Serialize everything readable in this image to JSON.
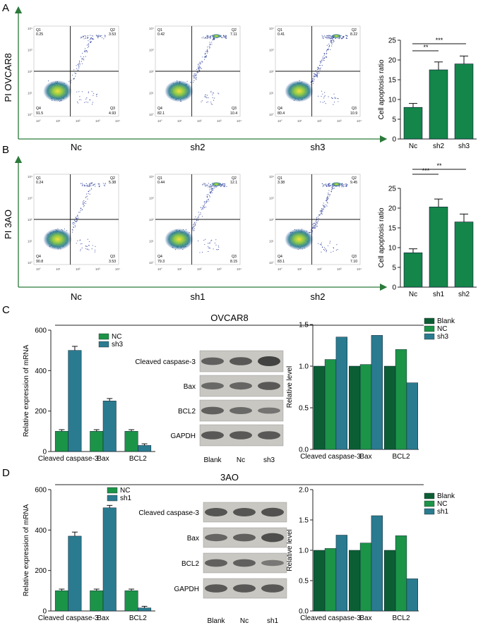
{
  "panel_labels": {
    "a": "A",
    "b": "B",
    "c": "C",
    "d": "D"
  },
  "colors": {
    "dark_green": "#0b5e34",
    "green": "#1b9448",
    "mid_green": "#14864a",
    "teal": "#2a7b8f",
    "axis_green": "#2b7a3a"
  },
  "flow": {
    "rowA": {
      "ylabel": "PI  OVCAR8",
      "plots": [
        {
          "label": "Nc",
          "q1": "0.25",
          "q2": "3.53",
          "q3": "4.93",
          "q4": "91.5"
        },
        {
          "label": "sh2",
          "q1": "0.42",
          "q2": "7.11",
          "q3": "10.4",
          "q4": "82.1"
        },
        {
          "label": "sh3",
          "q1": "0.41",
          "q2": "8.22",
          "q3": "10.9",
          "q4": "80.4"
        }
      ]
    },
    "rowB": {
      "ylabel": "PI  3AO",
      "plots": [
        {
          "label": "Nc",
          "q1": "0.24",
          "q2": "5.38",
          "q3": "3.53",
          "q4": "90.8"
        },
        {
          "label": "sh1",
          "q1": "0.44",
          "q2": "12.1",
          "q3": "8.15",
          "q4": "79.3"
        },
        {
          "label": "sh2",
          "q1": "3.38",
          "q2": "9.45",
          "q3": "7.10",
          "q4": "83.1"
        }
      ]
    },
    "quadrant_names": {
      "q1": "Q1",
      "q2": "Q2",
      "q3": "Q3",
      "q4": "Q4"
    },
    "x_ticks": [
      "10°",
      "10¹",
      "10²",
      "10³",
      "10⁴"
    ],
    "y_ticks": [
      "10⁴",
      "10³",
      "10²",
      "10¹",
      "10°"
    ]
  },
  "blots": {
    "c": {
      "title": "OVCAR8",
      "rows": [
        "Cleaved caspase-3",
        "Bax",
        "BCL2",
        "GAPDH"
      ],
      "lanes": [
        "Blank",
        "Nc",
        "sh3"
      ]
    },
    "d": {
      "title": "3AO",
      "rows": [
        "Cleaved caspase-3",
        "Bax",
        "BCL2",
        "GAPDH"
      ],
      "lanes": [
        "Blank",
        "Nc",
        "sh1"
      ]
    }
  },
  "chart_data": [
    {
      "id": "apoptosis_ovcar8",
      "type": "bar",
      "categories": [
        "Nc",
        "sh2",
        "sh3"
      ],
      "values": [
        8.0,
        17.5,
        19.0
      ],
      "errors": [
        1.0,
        2.0,
        2.0
      ],
      "ylabel": "Cell apoptosis ratio",
      "ylim": [
        0,
        25
      ],
      "yticks": [
        "0",
        "5",
        "10",
        "15",
        "20",
        "25"
      ],
      "significance": [
        "**",
        "***"
      ]
    },
    {
      "id": "apoptosis_3ao",
      "type": "bar",
      "categories": [
        "Nc",
        "sh1",
        "sh2"
      ],
      "values": [
        8.7,
        20.3,
        16.5
      ],
      "errors": [
        1.0,
        2.0,
        2.0
      ],
      "ylabel": "Cell apoptosis ratio",
      "ylim": [
        0,
        25
      ],
      "yticks": [
        "0",
        "5",
        "10",
        "15",
        "20",
        "25"
      ],
      "significance": [
        "***",
        "**"
      ]
    },
    {
      "id": "mrna_ovcar8",
      "type": "bar",
      "categories": [
        "Cleaved caspase-3",
        "Bax",
        "BCL2"
      ],
      "series": [
        {
          "name": "NC",
          "values": [
            100,
            100,
            100
          ],
          "errors": [
            8,
            8,
            8
          ]
        },
        {
          "name": "sh3",
          "values": [
            500,
            250,
            30
          ],
          "errors": [
            20,
            12,
            8
          ]
        }
      ],
      "ylabel": "Relative expression of mRNA",
      "ylim": [
        0,
        600
      ],
      "yticks": [
        "0",
        "200",
        "400",
        "600"
      ]
    },
    {
      "id": "level_ovcar8",
      "type": "bar",
      "categories": [
        "Cleaved caspase-3",
        "Bax",
        "BCL2"
      ],
      "series": [
        {
          "name": "Blank",
          "values": [
            1.0,
            1.0,
            1.0
          ]
        },
        {
          "name": "NC",
          "values": [
            1.08,
            1.02,
            1.2
          ]
        },
        {
          "name": "sh3",
          "values": [
            1.35,
            1.37,
            0.8
          ]
        }
      ],
      "ylabel": "Relative level",
      "ylim": [
        0,
        1.5
      ],
      "yticks": [
        "0.0",
        "0.5",
        "1.0",
        "1.5"
      ]
    },
    {
      "id": "mrna_3ao",
      "type": "bar",
      "categories": [
        "Cleaved caspase-3",
        "Bax",
        "BCL2"
      ],
      "series": [
        {
          "name": "NC",
          "values": [
            100,
            100,
            100
          ],
          "errors": [
            8,
            8,
            8
          ]
        },
        {
          "name": "sh1",
          "values": [
            370,
            510,
            15
          ],
          "errors": [
            20,
            12,
            8
          ]
        }
      ],
      "ylabel": "Relative expression of mRNA",
      "ylim": [
        0,
        600
      ],
      "yticks": [
        "0",
        "200",
        "400",
        "600"
      ]
    },
    {
      "id": "level_3ao",
      "type": "bar",
      "categories": [
        "Cleaved caspase-3",
        "Bax",
        "BCL2"
      ],
      "series": [
        {
          "name": "Blank",
          "values": [
            1.0,
            1.0,
            1.0
          ]
        },
        {
          "name": "NC",
          "values": [
            1.03,
            1.12,
            1.24
          ]
        },
        {
          "name": "sh1",
          "values": [
            1.25,
            1.57,
            0.53
          ]
        }
      ],
      "ylabel": "Relative level",
      "ylim": [
        0,
        2.0
      ],
      "yticks": [
        "0.0",
        "0.5",
        "1.0",
        "1.5",
        "2.0"
      ]
    }
  ]
}
